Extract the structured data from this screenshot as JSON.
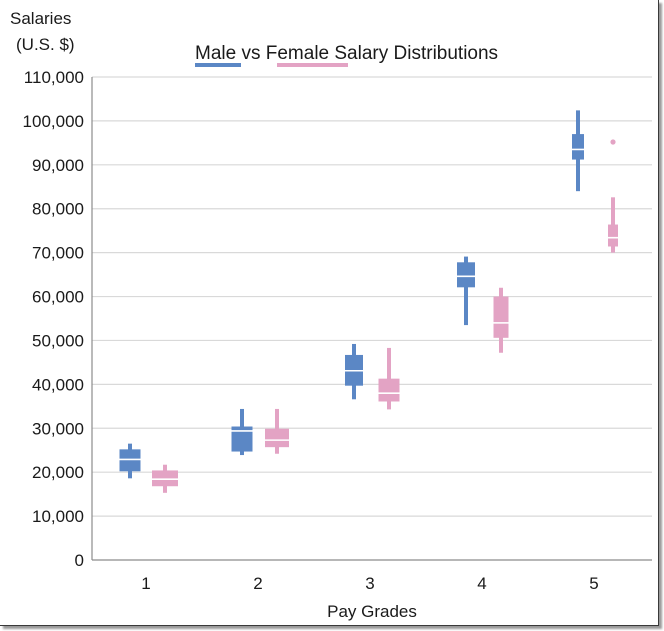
{
  "chart_data": {
    "type": "box",
    "title": {
      "parts": [
        {
          "text": "Male",
          "legend_series": "Male"
        },
        {
          "text": " vs ",
          "legend_series": null
        },
        {
          "text": "Female",
          "legend_series": "Female"
        },
        {
          "text": " Salary Distributions",
          "legend_series": null
        }
      ]
    },
    "ylabel_lines": [
      "Salaries",
      "(U.S. $)"
    ],
    "xlabel": "Pay Grades",
    "categories": [
      "1",
      "2",
      "3",
      "4",
      "5"
    ],
    "ylim": [
      0,
      110000
    ],
    "yticks": [
      0,
      10000,
      20000,
      30000,
      40000,
      50000,
      60000,
      70000,
      80000,
      90000,
      100000,
      110000
    ],
    "ytick_labels": [
      "0",
      "10,000",
      "20,000",
      "30,000",
      "40,000",
      "50,000",
      "60,000",
      "70,000",
      "80,000",
      "90,000",
      "100,000",
      "110,000"
    ],
    "grid": "horizontal",
    "legend": "embedded-in-title",
    "series": [
      {
        "name": "Male",
        "color": "#5b87c5",
        "boxes": [
          {
            "whisker_low": 18600,
            "q1": 20200,
            "median": 22900,
            "q3": 25200,
            "whisker_high": 26500,
            "outliers": []
          },
          {
            "whisker_low": 23900,
            "q1": 24700,
            "median": 29400,
            "q3": 30400,
            "whisker_high": 34400,
            "outliers": []
          },
          {
            "whisker_low": 36600,
            "q1": 39700,
            "median": 43100,
            "q3": 46700,
            "whisker_high": 49200,
            "outliers": []
          },
          {
            "whisker_low": 53500,
            "q1": 62100,
            "median": 64600,
            "q3": 67800,
            "whisker_high": 69100,
            "outliers": []
          },
          {
            "whisker_low": 84000,
            "q1": 91200,
            "median": 93500,
            "q3": 97000,
            "whisker_high": 102400,
            "outliers": []
          }
        ]
      },
      {
        "name": "Female",
        "color": "#e3a3c4",
        "boxes": [
          {
            "whisker_low": 15300,
            "q1": 16800,
            "median": 18400,
            "q3": 20400,
            "whisker_high": 21700,
            "outliers": []
          },
          {
            "whisker_low": 24200,
            "q1": 25700,
            "median": 27300,
            "q3": 29900,
            "whisker_high": 34400,
            "outliers": []
          },
          {
            "whisker_low": 34300,
            "q1": 36100,
            "median": 38000,
            "q3": 41300,
            "whisker_high": 48300,
            "outliers": []
          },
          {
            "whisker_low": 47200,
            "q1": 50600,
            "median": 54000,
            "q3": 60000,
            "whisker_high": 62000,
            "outliers": []
          },
          {
            "whisker_low": 70000,
            "q1": 71400,
            "median": 73400,
            "q3": 76400,
            "whisker_high": 82600,
            "outliers": [
              95200
            ]
          }
        ]
      }
    ]
  }
}
